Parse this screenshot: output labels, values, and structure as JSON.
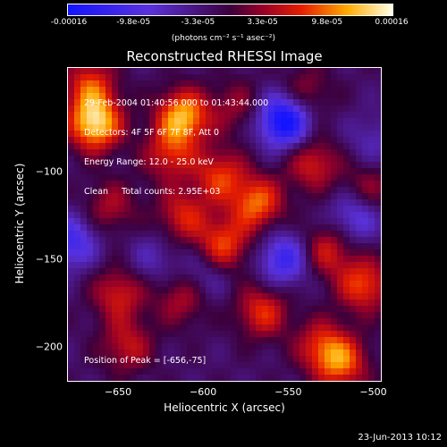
{
  "chart_data": {
    "type": "heatmap",
    "title": "Reconstructed RHESSI Image",
    "xlabel": "Heliocentric X (arcsec)",
    "ylabel": "Heliocentric Y (arcsec)",
    "x_ticks": [
      "-650",
      "-600",
      "-550",
      "-500"
    ],
    "y_ticks": [
      "-100",
      "-150",
      "-200"
    ],
    "xlim": [
      -680,
      -495
    ],
    "ylim": [
      -220,
      -40
    ],
    "colorbar": {
      "ticks": [
        "-0.00016",
        "-9.8e-05",
        "-3.3e-05",
        "3.3e-05",
        "9.8e-05",
        "0.00016"
      ],
      "unit_label": "(photons cm⁻² s⁻¹ asec⁻²)",
      "range": [
        -0.00016,
        0.00016
      ]
    },
    "info_lines": [
      "29-Feb-2004 01:40:56.000 to 01:43:44.000",
      "Detectors: 4F 5F 6F 7F 8F, Att 0",
      "Energy Range: 12.0 - 25.0 keV",
      "Clean     Total counts: 2.95E+03"
    ],
    "peak_label": "Position of Peak = [-656,-75]",
    "peak_position": [
      -656,
      -75
    ],
    "blobs": [
      {
        "x": -664,
        "y": -72,
        "v": 0.00016
      },
      {
        "x": -667,
        "y": -50,
        "v": 9e-05
      },
      {
        "x": -612,
        "y": -68,
        "v": 0.00014
      },
      {
        "x": -620,
        "y": -90,
        "v": 8e-05
      },
      {
        "x": -590,
        "y": -102,
        "v": 9e-05
      },
      {
        "x": -588,
        "y": -142,
        "v": 0.0001
      },
      {
        "x": -612,
        "y": -125,
        "v": 8e-05
      },
      {
        "x": -612,
        "y": -172,
        "v": 7e-05
      },
      {
        "x": -650,
        "y": -170,
        "v": 8e-05
      },
      {
        "x": -645,
        "y": -200,
        "v": 7e-05
      },
      {
        "x": -655,
        "y": -120,
        "v": 6e-05
      },
      {
        "x": -568,
        "y": -118,
        "v": 0.00011
      },
      {
        "x": -565,
        "y": -180,
        "v": 9e-05
      },
      {
        "x": -535,
        "y": -95,
        "v": 8e-05
      },
      {
        "x": -527,
        "y": -145,
        "v": 8e-05
      },
      {
        "x": -530,
        "y": -200,
        "v": 8e-05
      },
      {
        "x": -518,
        "y": -210,
        "v": 0.0001
      },
      {
        "x": -505,
        "y": -165,
        "v": 0.0001
      },
      {
        "x": -503,
        "y": -110,
        "v": 6e-05
      },
      {
        "x": -540,
        "y": -55,
        "v": 6e-05
      },
      {
        "x": -580,
        "y": -62,
        "v": 5e-05
      },
      {
        "x": -552,
        "y": -70,
        "v": -0.00016
      },
      {
        "x": -678,
        "y": -140,
        "v": -9e-05
      },
      {
        "x": -600,
        "y": -160,
        "v": -5e-05
      },
      {
        "x": -552,
        "y": -150,
        "v": -0.0001
      },
      {
        "x": -510,
        "y": -125,
        "v": -8e-05
      },
      {
        "x": -630,
        "y": -150,
        "v": -4e-05
      },
      {
        "x": -500,
        "y": -82,
        "v": -4e-05
      }
    ]
  },
  "timestamp": "23-Jun-2013 10:12"
}
